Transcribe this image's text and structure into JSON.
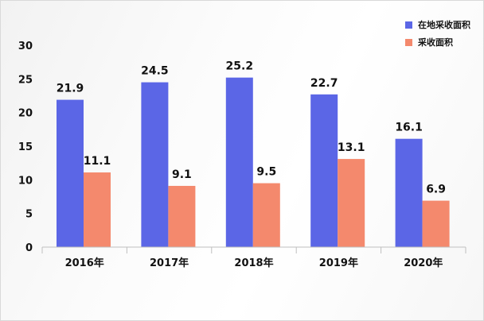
{
  "colors": {
    "series1": "#5B66E6",
    "series2": "#F4896D",
    "grid": "#d9d9d9",
    "axis": "#bfbfbf"
  },
  "chart_data": {
    "type": "bar",
    "title": "",
    "xlabel": "",
    "ylabel": "",
    "categories": [
      "2016年",
      "2017年",
      "2018年",
      "2019年",
      "2020年"
    ],
    "series": [
      {
        "name": "在地采收面积",
        "values": [
          21.9,
          24.5,
          25.2,
          22.7,
          16.1
        ],
        "labels": [
          "21.9",
          "24.5",
          "25.2",
          "22.7",
          "16.1"
        ]
      },
      {
        "name": "采收面积",
        "values": [
          11.1,
          9.1,
          9.5,
          13.1,
          6.9
        ],
        "labels": [
          "11.1",
          "9.1",
          "9.5",
          "13.1",
          "6.9"
        ]
      }
    ],
    "ylim": [
      0,
      30
    ],
    "yticks": [
      "0",
      "5",
      "10",
      "15",
      "20",
      "25",
      "30"
    ],
    "grid": false,
    "legend_position": "top-right"
  }
}
